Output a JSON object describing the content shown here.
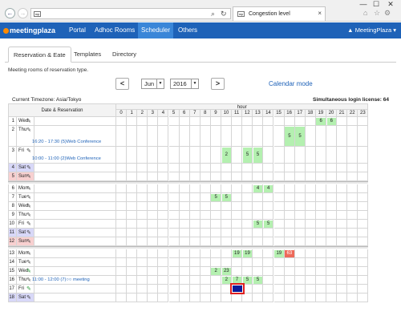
{
  "browser": {
    "address_favicon": "mp",
    "tab_favicon": "mp",
    "tab_title": "Congestion level",
    "close": "×",
    "minimize": "—",
    "maximize": "☐",
    "window_close": "✕"
  },
  "app": {
    "logo": "meetingplaza",
    "nav": [
      "Portal",
      "Adhoc Rooms",
      "Scheduler",
      "Others"
    ],
    "active_nav": "Scheduler",
    "user": "MeetingPlaza"
  },
  "subtabs": [
    "Reservation & Eate",
    "Templates",
    "Directory"
  ],
  "description": "Meeting rooms of reservation type.",
  "controls": {
    "prev": "<",
    "next": ">",
    "month": "Jun",
    "year": "2016",
    "calendar_mode": "Calendar mode"
  },
  "timezone": "Current Timezone: Asia/Tokyo",
  "license": "Simultaneous login license: 64",
  "grid": {
    "date_header": "Date & Reservation",
    "hour_header": "hour",
    "hours": [
      "0",
      "1",
      "2",
      "3",
      "4",
      "5",
      "6",
      "7",
      "8",
      "9",
      "10",
      "11",
      "12",
      "13",
      "14",
      "15",
      "16",
      "17",
      "18",
      "19",
      "20",
      "21",
      "22",
      "23"
    ]
  },
  "days": [
    {
      "day": "1",
      "wd": "Wed"
    },
    {
      "day": "2",
      "wd": "Thu"
    },
    {
      "day": "3",
      "wd": "Fri"
    },
    {
      "day": "4",
      "wd": "Sat"
    },
    {
      "day": "5",
      "wd": "Sun"
    },
    {
      "day": "6",
      "wd": "Mon"
    },
    {
      "day": "7",
      "wd": "Tue"
    },
    {
      "day": "8",
      "wd": "Wed"
    },
    {
      "day": "9",
      "wd": "Thu"
    },
    {
      "day": "10",
      "wd": "Fri"
    },
    {
      "day": "11",
      "wd": "Sat"
    },
    {
      "day": "12",
      "wd": "Sun"
    },
    {
      "day": "13",
      "wd": "Mon"
    },
    {
      "day": "14",
      "wd": "Tue"
    },
    {
      "day": "15",
      "wd": "Wed"
    },
    {
      "day": "16",
      "wd": "Thu"
    },
    {
      "day": "17",
      "wd": "Fri"
    },
    {
      "day": "18",
      "wd": "Sat"
    }
  ],
  "events": {
    "thu2": "16:20 - 17:30 (5)Web Conference",
    "fri3": "10:00 - 11:00 (2)Web Conference",
    "thu16": "11:00 - 12:00 (7)○○ meeting"
  },
  "occupancy": [
    {
      "row": 0,
      "hour": 19,
      "val": "6"
    },
    {
      "row": 0,
      "hour": 20,
      "val": "6"
    },
    {
      "row": 1,
      "hour": 16,
      "val": "5"
    },
    {
      "row": 1,
      "hour": 17,
      "val": "5"
    },
    {
      "row": 2,
      "hour": 10,
      "val": "2"
    },
    {
      "row": 2,
      "hour": 12,
      "val": "5"
    },
    {
      "row": 2,
      "hour": 13,
      "val": "5"
    },
    {
      "row": 5,
      "hour": 13,
      "val": "4"
    },
    {
      "row": 5,
      "hour": 14,
      "val": "4"
    },
    {
      "row": 6,
      "hour": 9,
      "val": "5"
    },
    {
      "row": 6,
      "hour": 10,
      "val": "5"
    },
    {
      "row": 9,
      "hour": 13,
      "val": "5"
    },
    {
      "row": 9,
      "hour": 14,
      "val": "5"
    },
    {
      "row": 12,
      "hour": 11,
      "val": "19"
    },
    {
      "row": 12,
      "hour": 12,
      "val": "19"
    },
    {
      "row": 12,
      "hour": 15,
      "val": "19"
    },
    {
      "row": 12,
      "hour": 16,
      "val": "63",
      "red": true
    },
    {
      "row": 14,
      "hour": 9,
      "val": "2"
    },
    {
      "row": 14,
      "hour": 10,
      "val": "23"
    },
    {
      "row": 15,
      "hour": 10,
      "val": "2"
    },
    {
      "row": 15,
      "hour": 11,
      "val": "7"
    },
    {
      "row": 15,
      "hour": 12,
      "val": "5"
    },
    {
      "row": 15,
      "hour": 13,
      "val": "5"
    }
  ],
  "selected_cell": {
    "row": 16,
    "hour": 11
  },
  "colors": {
    "nav_bg": "#1e62b8",
    "occupied": "#b4f0b0",
    "overload": "#ee6a5a",
    "saturday": "#d8d8f8",
    "sunday": "#f8d0d0",
    "selected": "#0a1a9a"
  }
}
